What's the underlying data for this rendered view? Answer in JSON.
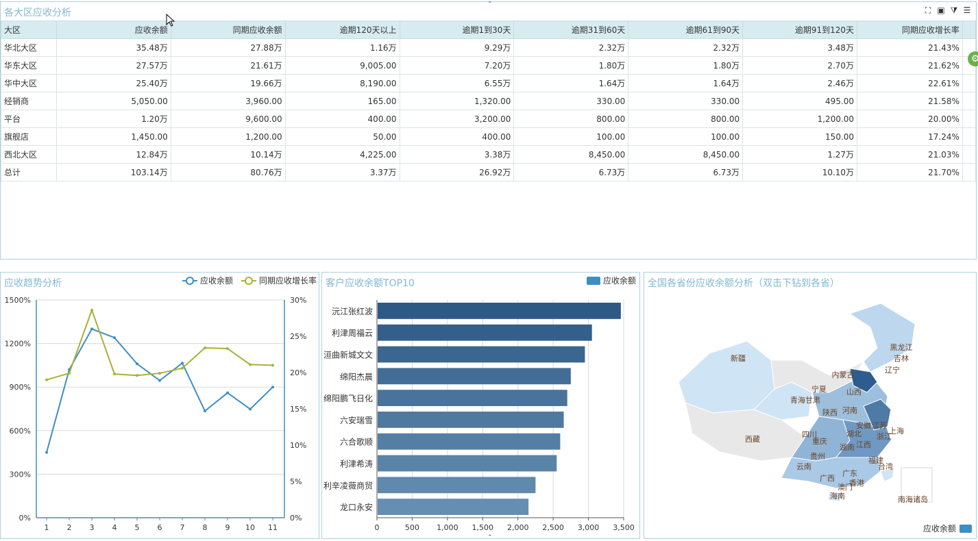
{
  "table_panel": {
    "title": "各大区应收分析",
    "headers": [
      "大区",
      "应收余额",
      "同期应收余额",
      "逾期120天以上",
      "逾期1到30天",
      "逾期31到60天",
      "逾期61到90天",
      "逾期91到120天",
      "同期应收增长率"
    ],
    "rows": [
      [
        "华北大区",
        "35.48万",
        "27.88万",
        "1.16万",
        "9.29万",
        "2.32万",
        "2.32万",
        "3.48万",
        "21.43%"
      ],
      [
        "华东大区",
        "27.57万",
        "21.61万",
        "9,005.00",
        "7.20万",
        "1.80万",
        "1.80万",
        "2.70万",
        "21.62%"
      ],
      [
        "华中大区",
        "25.40万",
        "19.66万",
        "8,190.00",
        "6.55万",
        "1.64万",
        "1.64万",
        "2.46万",
        "22.61%"
      ],
      [
        "经销商",
        "5,050.00",
        "3,960.00",
        "165.00",
        "1,320.00",
        "330.00",
        "330.00",
        "495.00",
        "21.58%"
      ],
      [
        "平台",
        "1.20万",
        "9,600.00",
        "400.00",
        "3,200.00",
        "800.00",
        "800.00",
        "1,200.00",
        "20.00%"
      ],
      [
        "旗舰店",
        "1,450.00",
        "1,200.00",
        "50.00",
        "400.00",
        "100.00",
        "100.00",
        "150.00",
        "17.24%"
      ],
      [
        "西北大区",
        "12.84万",
        "10.14万",
        "4,225.00",
        "3.38万",
        "8,450.00",
        "8,450.00",
        "1.27万",
        "21.03%"
      ],
      [
        "总计",
        "103.14万",
        "80.76万",
        "3.37万",
        "26.92万",
        "6.73万",
        "6.73万",
        "10.10万",
        "21.70%"
      ]
    ]
  },
  "trend_panel": {
    "title": "应收趋势分析"
  },
  "top10_panel": {
    "title": "客户应收余额TOP10"
  },
  "map_panel": {
    "title": "全国各省份应收余额分析（双击下钻到各省）",
    "legend": "应收余额",
    "labels": [
      "黑龙江",
      "吉林",
      "辽宁",
      "内蒙古",
      "新疆",
      "宁夏",
      "青海",
      "甘肃",
      "山西",
      "陕西",
      "河南",
      "西藏",
      "四川",
      "重庆",
      "湖北",
      "安徽",
      "江苏",
      "上海",
      "浙江",
      "湖南",
      "江西",
      "贵州",
      "福建",
      "台湾",
      "云南",
      "广西",
      "广东",
      "澳门",
      "香港",
      "海南",
      "南海诸岛"
    ]
  },
  "colors": {
    "accent": "#7fb9d3",
    "line1": "#3d8fc1",
    "line2": "#a8b133",
    "bar": "#4f7aa3"
  },
  "chart_data": [
    {
      "type": "line",
      "x": [
        1,
        2,
        3,
        4,
        5,
        6,
        7,
        8,
        9,
        10,
        11
      ],
      "series": [
        {
          "name": "应收余额",
          "axis": "left",
          "values": [
            450,
            1020,
            1300,
            1240,
            1060,
            945,
            1065,
            735,
            860,
            748,
            900
          ]
        },
        {
          "name": "同期应收增长率",
          "axis": "right",
          "values": [
            19.0,
            19.9,
            28.6,
            19.8,
            19.6,
            19.9,
            20.6,
            23.4,
            23.3,
            21.1,
            21.0
          ]
        }
      ],
      "ylim_left": [
        0,
        1500
      ],
      "yticks_left": [
        "0%",
        "300%",
        "600%",
        "900%",
        "1200%",
        "1500%"
      ],
      "ylim_right": [
        0,
        30
      ],
      "yticks_right": [
        "0%",
        "5%",
        "10%",
        "15%",
        "20%",
        "25%",
        "30%"
      ],
      "grid": true,
      "legend": "top-right"
    },
    {
      "type": "bar",
      "orientation": "horizontal",
      "categories": [
        "沅江张红波",
        "利津周福云",
        "洹曲新城文文",
        "绵阳杰晨",
        "绵阳鹏飞日化",
        "六安瑞雪",
        "六合歌顺",
        "利津希涛",
        "利辛凌薇商贸",
        "龙口永安"
      ],
      "series": [
        {
          "name": "应收余额",
          "values": [
            3460,
            3050,
            2950,
            2750,
            2700,
            2650,
            2600,
            2550,
            2250,
            2150
          ]
        }
      ],
      "xlim": [
        0,
        3500
      ],
      "xticks": [
        "0",
        "500",
        "1,000",
        "1,500",
        "2,000",
        "2,500",
        "3,000",
        "3,500"
      ],
      "grid": true,
      "legend": "top-right"
    }
  ]
}
